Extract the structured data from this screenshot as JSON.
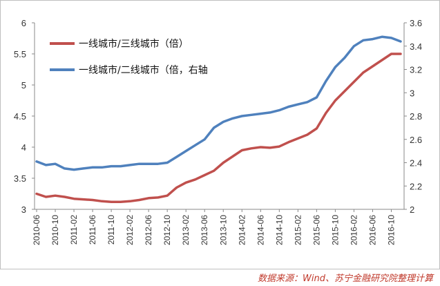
{
  "chart_data": {
    "type": "line",
    "x": [
      "2010-06",
      "2010-08",
      "2010-10",
      "2010-12",
      "2011-02",
      "2011-04",
      "2011-06",
      "2011-08",
      "2011-10",
      "2011-12",
      "2012-02",
      "2012-04",
      "2012-06",
      "2012-08",
      "2012-10",
      "2012-12",
      "2013-02",
      "2013-04",
      "2013-06",
      "2013-08",
      "2013-10",
      "2013-12",
      "2014-02",
      "2014-04",
      "2014-06",
      "2014-08",
      "2014-10",
      "2014-12",
      "2015-02",
      "2015-04",
      "2015-06",
      "2015-08",
      "2015-10",
      "2015-12",
      "2016-02",
      "2016-04",
      "2016-06",
      "2016-08",
      "2016-10",
      "2016-11"
    ],
    "xtick_labels": [
      "2010-06",
      "2010-10",
      "2011-02",
      "2011-06",
      "2011-10",
      "2012-02",
      "2012-06",
      "2012-10",
      "2013-02",
      "2013-06",
      "2013-10",
      "2014-02",
      "2014-06",
      "2014-10",
      "2015-02",
      "2015-06",
      "2015-10",
      "2016-02",
      "2016-06",
      "2016-10"
    ],
    "y_left": {
      "ylim": [
        3,
        6
      ],
      "ticks": [
        "3",
        "3.5",
        "4",
        "4.5",
        "5",
        "5.5",
        "6"
      ]
    },
    "y_right": {
      "ylim": [
        2,
        3.6
      ],
      "ticks": [
        "2",
        "2.2",
        "2.4",
        "2.6",
        "2.8",
        "3",
        "3.2",
        "3.4",
        "3.6"
      ]
    },
    "series": [
      {
        "name": "一线城市/三线城市（倍）",
        "axis": "left",
        "color": "#c0504d",
        "values": [
          3.25,
          3.2,
          3.22,
          3.2,
          3.17,
          3.16,
          3.15,
          3.13,
          3.12,
          3.12,
          3.13,
          3.15,
          3.18,
          3.19,
          3.22,
          3.35,
          3.43,
          3.48,
          3.55,
          3.62,
          3.75,
          3.85,
          3.95,
          3.98,
          4.0,
          3.99,
          4.01,
          4.08,
          4.14,
          4.2,
          4.3,
          4.55,
          4.75,
          4.9,
          5.05,
          5.2,
          5.3,
          5.4,
          5.5,
          5.5
        ]
      },
      {
        "name": "一线城市/二线城市（倍，右轴",
        "axis": "right",
        "color": "#4f81bd",
        "values": [
          2.41,
          2.38,
          2.39,
          2.35,
          2.34,
          2.35,
          2.36,
          2.36,
          2.37,
          2.37,
          2.38,
          2.39,
          2.39,
          2.39,
          2.4,
          2.45,
          2.5,
          2.55,
          2.6,
          2.7,
          2.75,
          2.78,
          2.8,
          2.81,
          2.82,
          2.83,
          2.85,
          2.88,
          2.9,
          2.92,
          2.96,
          3.1,
          3.22,
          3.3,
          3.4,
          3.45,
          3.46,
          3.48,
          3.47,
          3.44
        ]
      }
    ]
  },
  "source_note": "数据来源：Wind、苏宁金融研究院整理计算"
}
